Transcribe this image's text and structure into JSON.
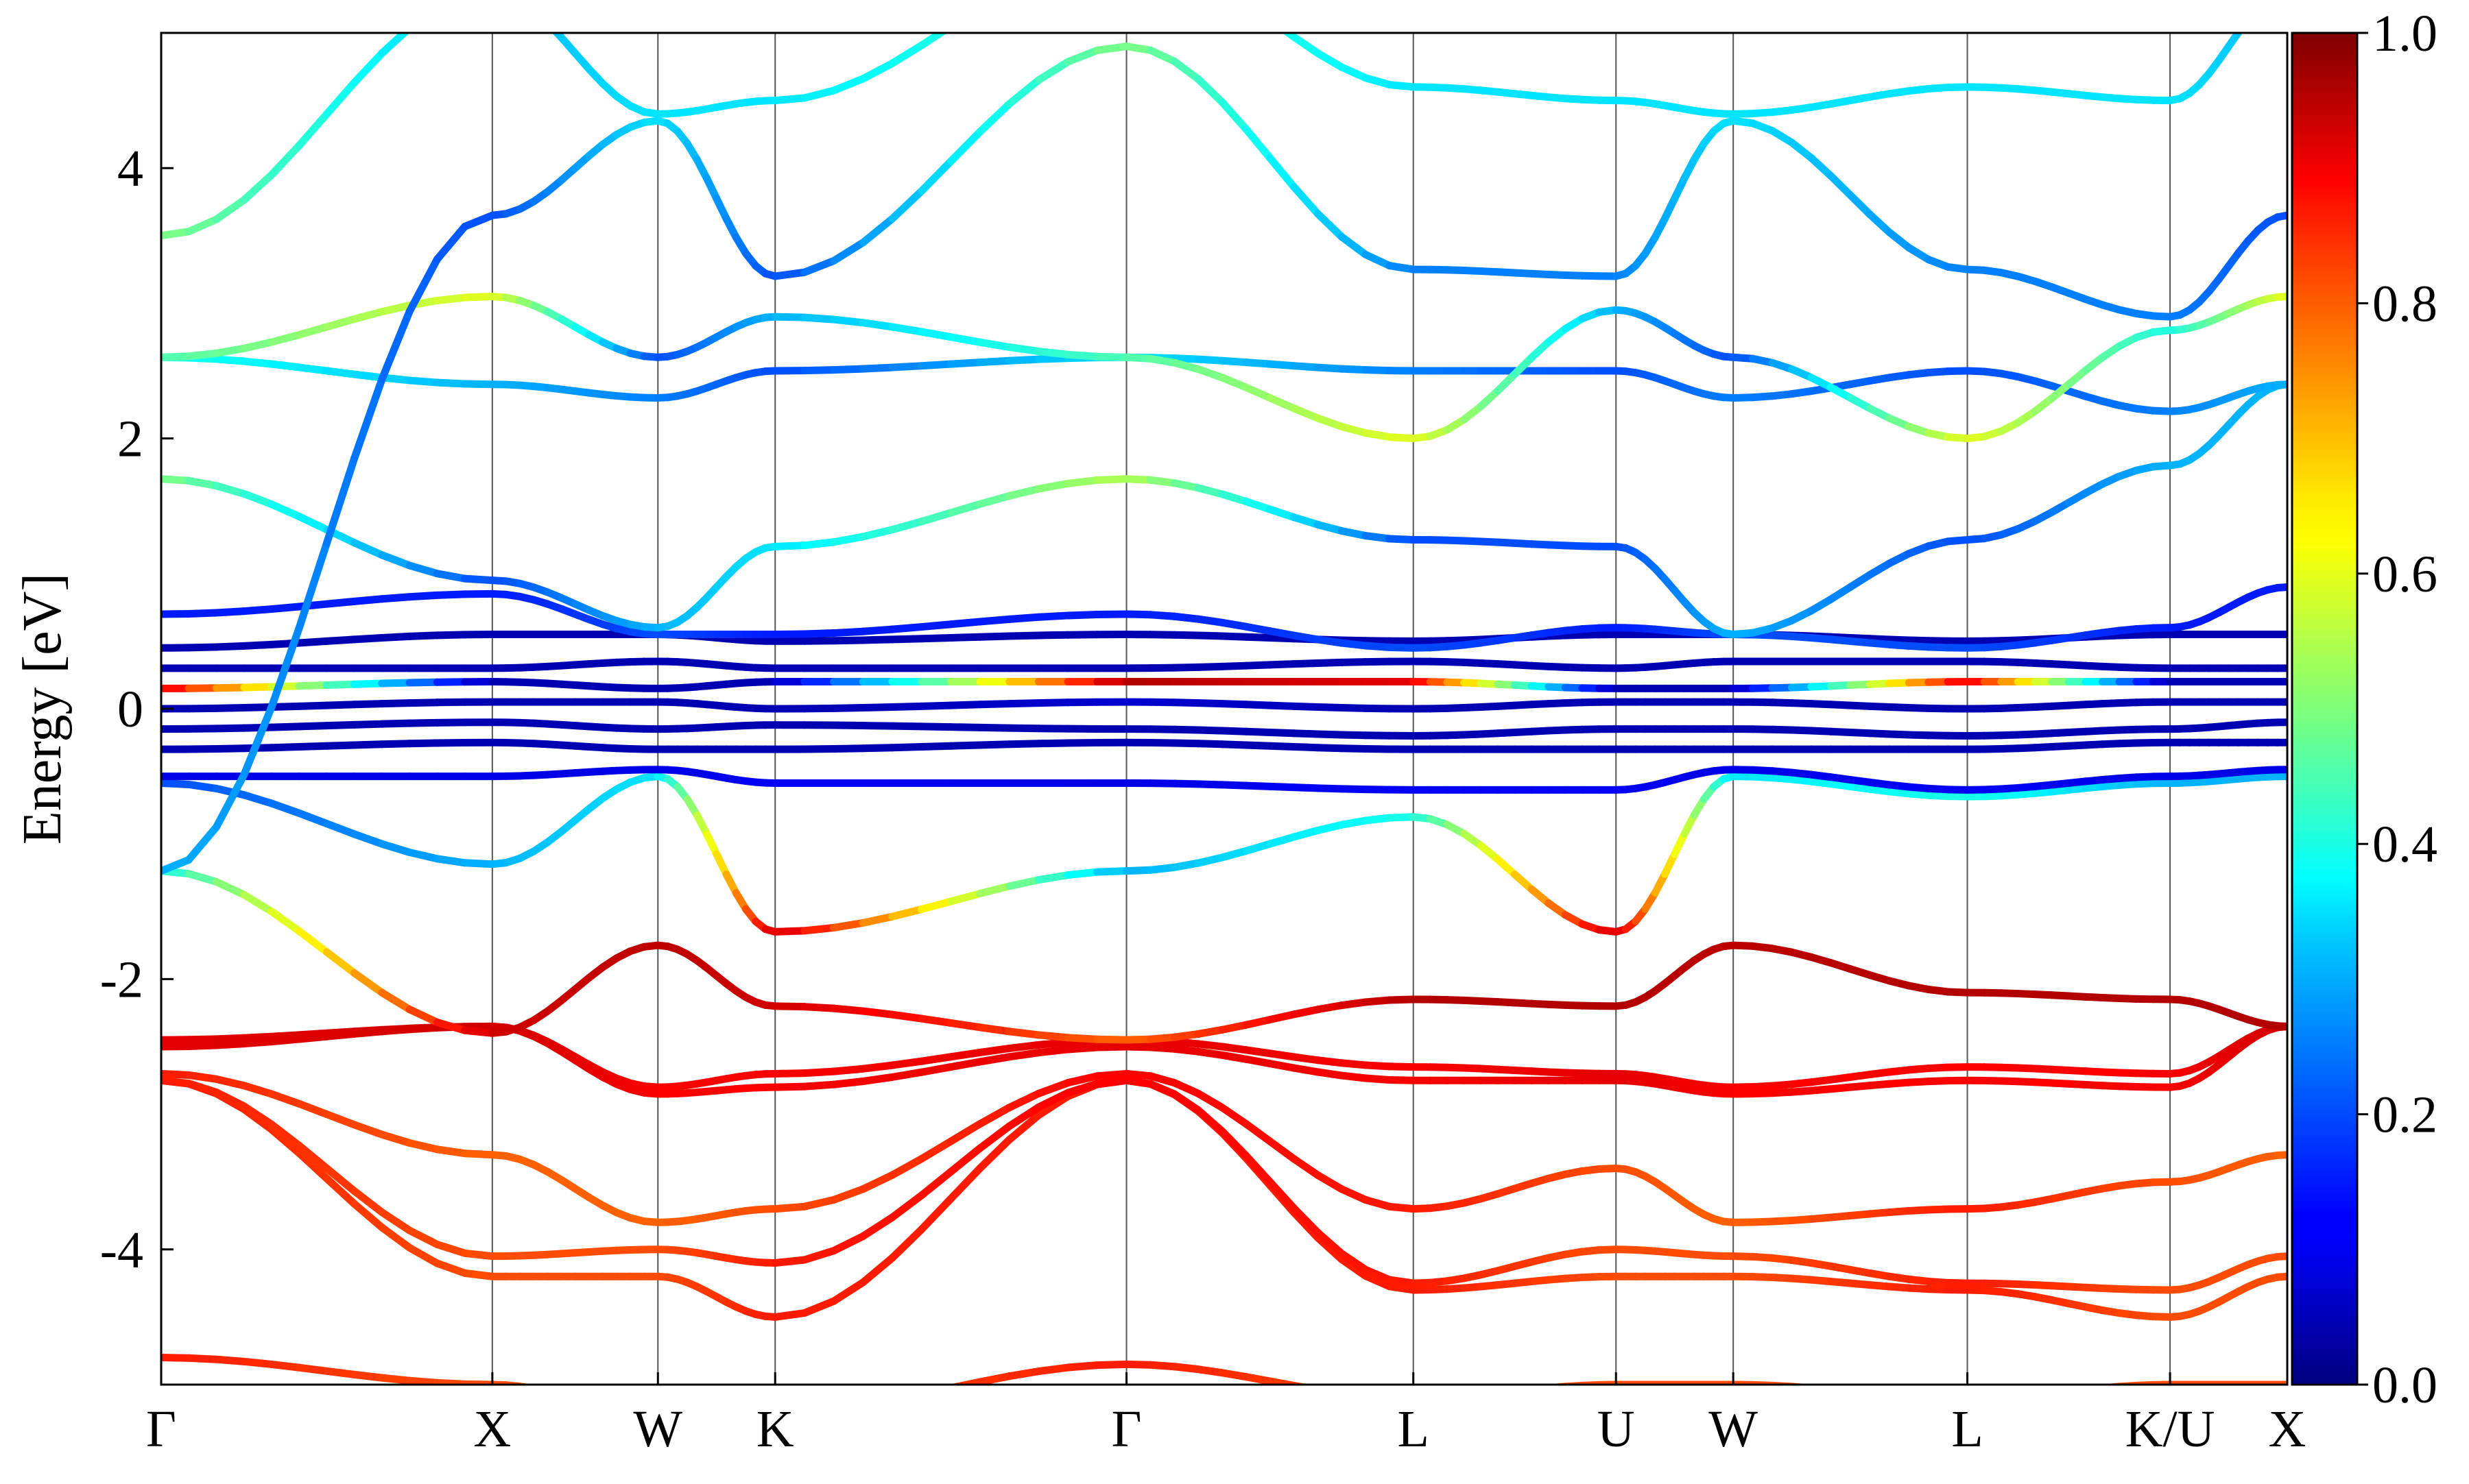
{
  "chart_data": {
    "type": "line",
    "title": "",
    "xlabel": "",
    "ylabel": "Energy [eV]",
    "ylim": [
      -5,
      5
    ],
    "yticks": [
      4,
      2,
      0,
      -2,
      -4
    ],
    "ytick_labels": [
      "4",
      "2",
      "0",
      "-2",
      "-4"
    ],
    "path_segments": [
      {
        "from": "Γ",
        "to": "X",
        "length": 1.0
      },
      {
        "from": "X",
        "to": "W",
        "length": 0.5
      },
      {
        "from": "W",
        "to": "K",
        "length": 0.354
      },
      {
        "from": "K",
        "to": "Γ",
        "length": 1.061
      },
      {
        "from": "Γ",
        "to": "L",
        "length": 0.866
      },
      {
        "from": "L",
        "to": "U",
        "length": 0.612
      },
      {
        "from": "U",
        "to": "W",
        "length": 0.354
      },
      {
        "from": "W",
        "to": "L",
        "length": 0.707
      },
      {
        "from": "L",
        "to": "K/U",
        "length": 0.612
      },
      {
        "from": "K/U",
        "to": "X",
        "length": 0.354
      }
    ],
    "kpoint_labels": [
      "Γ",
      "X",
      "W",
      "K",
      "Γ",
      "L",
      "U",
      "W",
      "L",
      "K/U",
      "X"
    ],
    "kpoint_positions": [
      0.0,
      1.0,
      1.5,
      1.854,
      2.915,
      3.781,
      4.393,
      4.747,
      5.454,
      6.066,
      6.42
    ],
    "vertical_lines": true,
    "grid": false,
    "colorbar": {
      "colormap": "jet",
      "range": [
        0.0,
        1.0
      ],
      "ticks": [
        "0.0",
        "0.2",
        "0.4",
        "0.6",
        "0.8",
        "1.0"
      ],
      "placement": "right"
    },
    "band_knots_x": [
      "Γ",
      "X",
      "W",
      "K",
      "Γ",
      "L",
      "U",
      "W",
      "L",
      "K/U",
      "X"
    ],
    "series": [
      {
        "values": [
          -4.8,
          -5.0,
          -5.2,
          -5.2,
          -4.85,
          -5.1,
          -5.0,
          -5.0,
          -5.1,
          -5.0,
          -5.0
        ],
        "weights": [
          0.85,
          0.8,
          0.8,
          0.8,
          0.85,
          0.8,
          0.8,
          0.8,
          0.8,
          0.8,
          0.8
        ]
      },
      {
        "values": [
          -2.75,
          -4.2,
          -4.2,
          -4.5,
          -2.75,
          -4.3,
          -4.2,
          -4.2,
          -4.3,
          -4.5,
          -4.2
        ],
        "weights": [
          0.85,
          0.8,
          0.8,
          0.85,
          0.85,
          0.85,
          0.8,
          0.8,
          0.85,
          0.8,
          0.8
        ]
      },
      {
        "values": [
          -2.75,
          -4.05,
          -4.0,
          -4.1,
          -2.75,
          -4.25,
          -4.0,
          -4.05,
          -4.25,
          -4.3,
          -4.05
        ],
        "weights": [
          0.85,
          0.8,
          0.8,
          0.85,
          0.88,
          0.85,
          0.8,
          0.8,
          0.85,
          0.8,
          0.8
        ]
      },
      {
        "values": [
          -2.7,
          -3.3,
          -3.8,
          -3.7,
          -2.7,
          -3.7,
          -3.4,
          -3.8,
          -3.7,
          -3.5,
          -3.3
        ],
        "weights": [
          0.85,
          0.78,
          0.78,
          0.8,
          0.88,
          0.85,
          0.8,
          0.78,
          0.85,
          0.8,
          0.78
        ]
      },
      {
        "values": [
          -2.5,
          -2.35,
          -2.85,
          -2.8,
          -2.5,
          -2.75,
          -2.75,
          -2.85,
          -2.75,
          -2.8,
          -2.35
        ],
        "weights": [
          0.9,
          0.92,
          0.88,
          0.88,
          0.9,
          0.88,
          0.9,
          0.88,
          0.88,
          0.88,
          0.92
        ]
      },
      {
        "values": [
          -2.45,
          -2.35,
          -2.8,
          -2.7,
          -2.45,
          -2.65,
          -2.7,
          -2.8,
          -2.65,
          -2.7,
          -2.35
        ],
        "weights": [
          0.9,
          0.92,
          0.88,
          0.88,
          0.9,
          0.88,
          0.9,
          0.88,
          0.88,
          0.88,
          0.92
        ]
      },
      {
        "values": [
          -1.2,
          -2.4,
          -1.75,
          -2.2,
          -2.45,
          -2.15,
          -2.2,
          -1.75,
          -2.1,
          -2.15,
          -2.35
        ],
        "weights": [
          0.4,
          0.92,
          0.94,
          0.92,
          0.78,
          0.95,
          0.95,
          0.94,
          0.95,
          0.95,
          0.95
        ]
      },
      {
        "values": [
          -0.55,
          -1.15,
          -0.5,
          -1.65,
          -1.2,
          -0.8,
          -1.65,
          -0.5,
          -0.65,
          -0.55,
          -0.5
        ],
        "weights": [
          0.2,
          0.3,
          0.35,
          0.92,
          0.3,
          0.4,
          0.92,
          0.35,
          0.4,
          0.3,
          0.3
        ]
      },
      {
        "values": [
          -0.5,
          -0.5,
          -0.45,
          -0.55,
          -0.55,
          -0.6,
          -0.6,
          -0.45,
          -0.6,
          -0.5,
          -0.45
        ],
        "weights": [
          0.1,
          0.1,
          0.1,
          0.12,
          0.1,
          0.12,
          0.12,
          0.1,
          0.12,
          0.1,
          0.1
        ]
      },
      {
        "values": [
          -0.3,
          -0.25,
          -0.3,
          -0.3,
          -0.25,
          -0.3,
          -0.3,
          -0.3,
          -0.3,
          -0.25,
          -0.25
        ],
        "weights": [
          0.05,
          0.05,
          0.05,
          0.05,
          0.05,
          0.05,
          0.05,
          0.05,
          0.05,
          0.05,
          0.05
        ]
      },
      {
        "values": [
          -0.15,
          -0.1,
          -0.15,
          -0.12,
          -0.15,
          -0.2,
          -0.15,
          -0.15,
          -0.2,
          -0.15,
          -0.1
        ],
        "weights": [
          0.05,
          0.05,
          0.05,
          0.05,
          0.05,
          0.05,
          0.05,
          0.05,
          0.05,
          0.05,
          0.05
        ]
      },
      {
        "values": [
          0.0,
          0.05,
          0.05,
          0.0,
          0.05,
          0.0,
          0.05,
          0.05,
          0.0,
          0.05,
          0.05
        ],
        "weights": [
          0.05,
          0.05,
          0.05,
          0.05,
          0.08,
          0.05,
          0.05,
          0.05,
          0.05,
          0.05,
          0.05
        ]
      },
      {
        "values": [
          0.15,
          0.2,
          0.15,
          0.2,
          0.2,
          0.2,
          0.15,
          0.15,
          0.2,
          0.2,
          0.2
        ],
        "weights": [
          0.9,
          0.05,
          0.05,
          0.05,
          0.95,
          0.9,
          0.05,
          0.05,
          0.9,
          0.05,
          0.05
        ]
      },
      {
        "values": [
          0.3,
          0.3,
          0.35,
          0.3,
          0.3,
          0.35,
          0.3,
          0.35,
          0.35,
          0.3,
          0.3
        ],
        "weights": [
          0.05,
          0.05,
          0.05,
          0.05,
          0.05,
          0.05,
          0.05,
          0.05,
          0.05,
          0.05,
          0.05
        ]
      },
      {
        "values": [
          0.45,
          0.55,
          0.55,
          0.5,
          0.55,
          0.5,
          0.55,
          0.55,
          0.5,
          0.55,
          0.55
        ],
        "weights": [
          0.05,
          0.05,
          0.05,
          0.05,
          0.05,
          0.05,
          0.05,
          0.05,
          0.05,
          0.05,
          0.05
        ]
      },
      {
        "values": [
          0.7,
          0.85,
          0.55,
          0.55,
          0.7,
          0.45,
          0.6,
          0.55,
          0.45,
          0.6,
          0.9
        ],
        "weights": [
          0.15,
          0.15,
          0.2,
          0.15,
          0.15,
          0.2,
          0.15,
          0.2,
          0.2,
          0.15,
          0.15
        ]
      },
      {
        "values": [
          1.7,
          0.95,
          0.6,
          1.2,
          1.7,
          1.25,
          1.2,
          0.55,
          1.25,
          1.8,
          2.4
        ],
        "weights": [
          0.5,
          0.2,
          0.3,
          0.35,
          0.55,
          0.2,
          0.2,
          0.3,
          0.2,
          0.3,
          0.3
        ]
      },
      {
        "values": [
          2.6,
          2.4,
          2.3,
          2.5,
          2.6,
          2.5,
          2.5,
          2.3,
          2.5,
          2.2,
          2.4
        ],
        "weights": [
          0.4,
          0.3,
          0.25,
          0.2,
          0.35,
          0.25,
          0.2,
          0.25,
          0.2,
          0.25,
          0.3
        ]
      },
      {
        "values": [
          2.6,
          3.05,
          2.6,
          2.9,
          2.6,
          2.0,
          2.95,
          2.6,
          2.0,
          2.8,
          3.05
        ],
        "weights": [
          0.45,
          0.6,
          0.2,
          0.3,
          0.45,
          0.6,
          0.3,
          0.2,
          0.6,
          0.4,
          0.6
        ]
      },
      {
        "values": [
          -1.2,
          3.65,
          4.35,
          3.2,
          4.9,
          3.25,
          3.2,
          4.35,
          3.25,
          2.9,
          3.65
        ],
        "weights": [
          0.3,
          0.2,
          0.35,
          0.2,
          0.5,
          0.25,
          0.25,
          0.35,
          0.25,
          0.25,
          0.2
        ]
      },
      {
        "values": [
          3.5,
          5.3,
          4.4,
          4.5,
          5.6,
          4.6,
          4.5,
          4.4,
          4.6,
          4.5,
          5.3
        ],
        "weights": [
          0.5,
          0.3,
          0.35,
          0.35,
          0.45,
          0.35,
          0.35,
          0.35,
          0.35,
          0.35,
          0.3
        ]
      }
    ]
  }
}
